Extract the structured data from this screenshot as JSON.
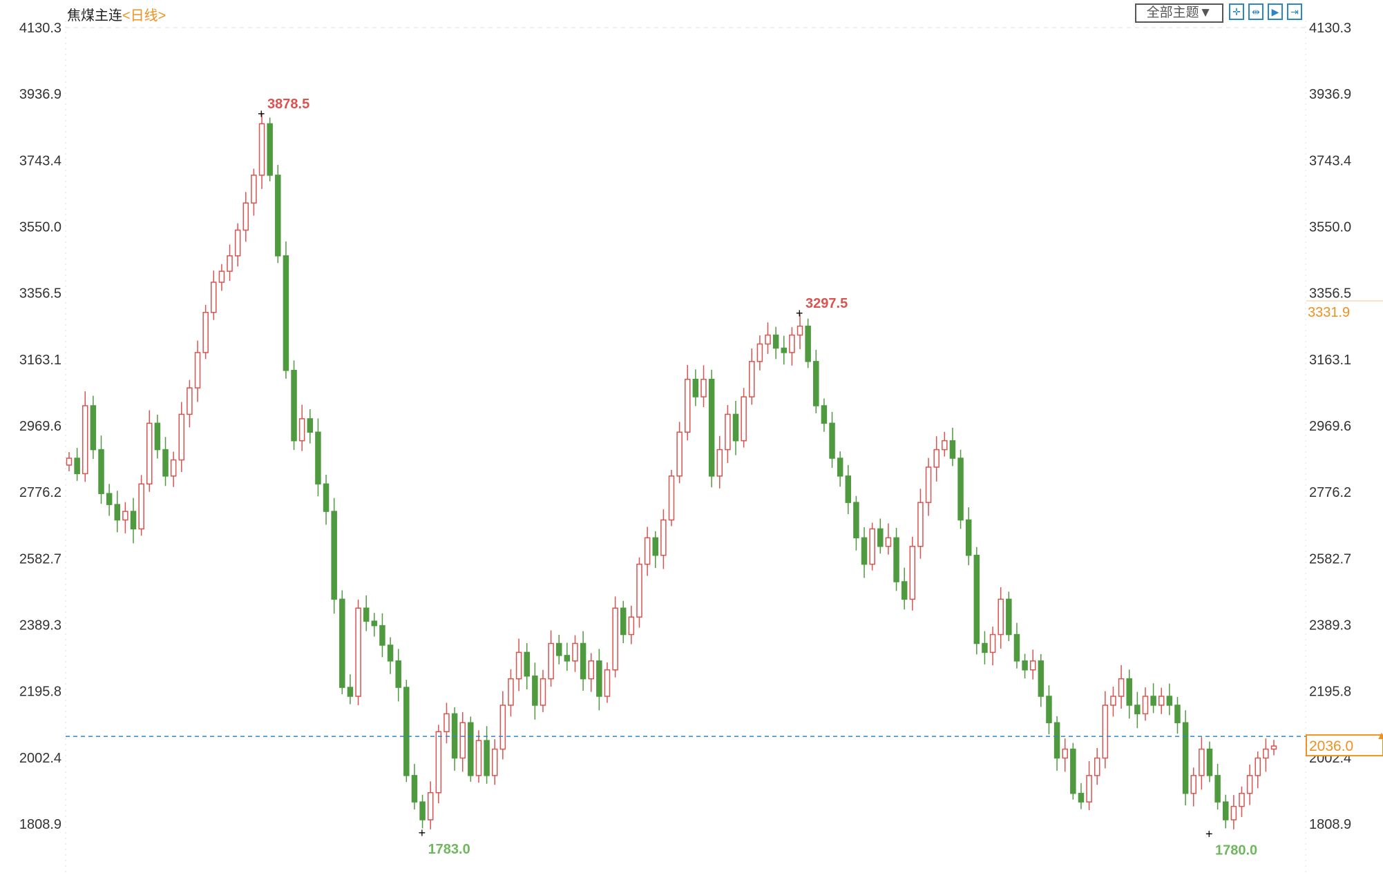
{
  "header": {
    "symbol": "焦煤主连",
    "period": "<日线>",
    "theme_button": "全部主题▼",
    "tools": [
      "crosshair-icon",
      "zoom-range-icon",
      "play-icon",
      "jump-to-end-icon"
    ]
  },
  "colors": {
    "up": "#d9534f",
    "down": "#4f9a3f",
    "accent": "#f0901e",
    "price_line": "#2a86c9"
  },
  "chart_data": {
    "type": "candlestick",
    "title": "",
    "ylim": [
      1808.9,
      4130.3
    ],
    "y_ticks": [
      "4130.3",
      "3936.9",
      "3743.4",
      "3550.0",
      "3356.5",
      "3163.1",
      "2969.6",
      "2776.2",
      "2582.7",
      "2389.3",
      "2195.8",
      "2002.4",
      "1808.9"
    ],
    "grid": false,
    "closes": [
      2875,
      2830,
      3028,
      2900,
      2772,
      2740,
      2695,
      2720,
      2669,
      2800,
      2977,
      2900,
      2823,
      2870,
      3003,
      3080,
      3183,
      3300,
      3388,
      3420,
      3465,
      3540,
      3619,
      3700,
      3850,
      3700,
      3465,
      3131,
      2926,
      2990,
      2951,
      2800,
      2720,
      2464,
      2207,
      2181,
      2438,
      2400,
      2387,
      2330,
      2284,
      2207,
      1950,
      1873,
      1821,
      1900,
      2078,
      2130,
      2001,
      2104,
      1950,
      2052,
      1950,
      2027,
      2155,
      2232,
      2309,
      2240,
      2155,
      2232,
      2335,
      2300,
      2284,
      2335,
      2232,
      2284,
      2181,
      2258,
      2438,
      2361,
      2412,
      2566,
      2643,
      2592,
      2695,
      2823,
      2951,
      3105,
      3054,
      3105,
      2823,
      2900,
      3003,
      2926,
      3054,
      3157,
      3208,
      3234,
      3196,
      3183,
      3234,
      3260,
      3157,
      3028,
      2977,
      2875,
      2823,
      2746,
      2643,
      2566,
      2669,
      2618,
      2643,
      2515,
      2464,
      2618,
      2746,
      2849,
      2900,
      2926,
      2875,
      2695,
      2592,
      2335,
      2309,
      2361,
      2464,
      2361,
      2284,
      2258,
      2284,
      2181,
      2104,
      2001,
      2027,
      1898,
      1873,
      1950,
      2001,
      2155,
      2181,
      2232,
      2155,
      2130,
      2181,
      2155,
      2181,
      2155,
      2104,
      1898,
      1950,
      2027,
      1950,
      1873,
      1821,
      1860,
      1898,
      1950,
      2001,
      2027,
      2036
    ],
    "annotations": [
      {
        "label": "3878.5",
        "value": 3878.5,
        "kind": "high"
      },
      {
        "label": "3297.5",
        "value": 3297.5,
        "kind": "high"
      },
      {
        "label": "1783.0",
        "value": 1783.0,
        "kind": "low"
      },
      {
        "label": "1780.0",
        "value": 1780.0,
        "kind": "low"
      }
    ],
    "last_price": "2036.0",
    "marker_price": "3331.9"
  }
}
